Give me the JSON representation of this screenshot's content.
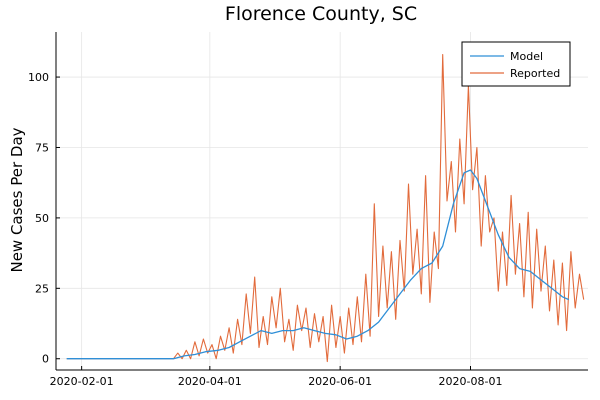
{
  "chart_data": {
    "type": "line",
    "title": "Florence County, SC",
    "xlabel": "",
    "ylabel": "New Cases Per Day",
    "x_axis": {
      "type": "date",
      "min": "2020-01-20",
      "max": "2020-09-25",
      "ticks": [
        "2020-02-01",
        "2020-04-01",
        "2020-06-01",
        "2020-08-01"
      ]
    },
    "y_axis": {
      "min": -4,
      "max": 116,
      "ticks": [
        0,
        25,
        50,
        75,
        100
      ]
    },
    "grid": true,
    "legend": {
      "position": "top-right"
    },
    "colors": {
      "Model": "#2f8fd7",
      "Reported": "#e26b3c"
    },
    "series": [
      {
        "name": "Model",
        "points": [
          [
            "2020-01-25",
            0
          ],
          [
            "2020-03-15",
            0
          ],
          [
            "2020-03-20",
            1
          ],
          [
            "2020-03-25",
            1.5
          ],
          [
            "2020-03-30",
            2.5
          ],
          [
            "2020-04-05",
            3
          ],
          [
            "2020-04-10",
            4
          ],
          [
            "2020-04-15",
            6
          ],
          [
            "2020-04-20",
            8
          ],
          [
            "2020-04-25",
            10
          ],
          [
            "2020-04-30",
            9
          ],
          [
            "2020-05-05",
            10
          ],
          [
            "2020-05-10",
            10
          ],
          [
            "2020-05-15",
            11
          ],
          [
            "2020-05-20",
            10
          ],
          [
            "2020-05-25",
            9
          ],
          [
            "2020-05-30",
            8.5
          ],
          [
            "2020-06-04",
            7
          ],
          [
            "2020-06-09",
            8
          ],
          [
            "2020-06-14",
            10
          ],
          [
            "2020-06-19",
            13
          ],
          [
            "2020-06-24",
            18
          ],
          [
            "2020-06-29",
            23
          ],
          [
            "2020-07-04",
            28
          ],
          [
            "2020-07-09",
            32
          ],
          [
            "2020-07-14",
            34
          ],
          [
            "2020-07-19",
            40
          ],
          [
            "2020-07-24",
            55
          ],
          [
            "2020-07-29",
            66
          ],
          [
            "2020-08-01",
            67
          ],
          [
            "2020-08-04",
            64
          ],
          [
            "2020-08-09",
            54
          ],
          [
            "2020-08-14",
            44
          ],
          [
            "2020-08-19",
            36
          ],
          [
            "2020-08-24",
            32
          ],
          [
            "2020-08-29",
            31
          ],
          [
            "2020-09-03",
            28
          ],
          [
            "2020-09-08",
            25
          ],
          [
            "2020-09-13",
            22
          ],
          [
            "2020-09-16",
            21
          ]
        ]
      },
      {
        "name": "Reported",
        "points": [
          [
            "2020-01-25",
            0
          ],
          [
            "2020-03-15",
            0
          ],
          [
            "2020-03-17",
            2
          ],
          [
            "2020-03-19",
            0
          ],
          [
            "2020-03-21",
            3
          ],
          [
            "2020-03-23",
            0
          ],
          [
            "2020-03-25",
            6
          ],
          [
            "2020-03-27",
            1
          ],
          [
            "2020-03-29",
            7
          ],
          [
            "2020-03-31",
            2
          ],
          [
            "2020-04-02",
            5
          ],
          [
            "2020-04-04",
            0
          ],
          [
            "2020-04-06",
            8
          ],
          [
            "2020-04-08",
            3
          ],
          [
            "2020-04-10",
            11
          ],
          [
            "2020-04-12",
            2
          ],
          [
            "2020-04-14",
            14
          ],
          [
            "2020-04-16",
            5
          ],
          [
            "2020-04-18",
            23
          ],
          [
            "2020-04-20",
            9
          ],
          [
            "2020-04-22",
            29
          ],
          [
            "2020-04-24",
            4
          ],
          [
            "2020-04-26",
            15
          ],
          [
            "2020-04-28",
            5
          ],
          [
            "2020-04-30",
            22
          ],
          [
            "2020-05-02",
            11
          ],
          [
            "2020-05-04",
            25
          ],
          [
            "2020-05-06",
            6
          ],
          [
            "2020-05-08",
            14
          ],
          [
            "2020-05-10",
            3
          ],
          [
            "2020-05-12",
            19
          ],
          [
            "2020-05-14",
            10
          ],
          [
            "2020-05-16",
            18
          ],
          [
            "2020-05-18",
            4
          ],
          [
            "2020-05-20",
            16
          ],
          [
            "2020-05-22",
            6
          ],
          [
            "2020-05-24",
            15
          ],
          [
            "2020-05-26",
            -1
          ],
          [
            "2020-05-28",
            19
          ],
          [
            "2020-05-30",
            4
          ],
          [
            "2020-06-01",
            15
          ],
          [
            "2020-06-03",
            2
          ],
          [
            "2020-06-05",
            18
          ],
          [
            "2020-06-07",
            5
          ],
          [
            "2020-06-09",
            22
          ],
          [
            "2020-06-11",
            6
          ],
          [
            "2020-06-13",
            30
          ],
          [
            "2020-06-15",
            8
          ],
          [
            "2020-06-17",
            55
          ],
          [
            "2020-06-19",
            15
          ],
          [
            "2020-06-21",
            40
          ],
          [
            "2020-06-23",
            18
          ],
          [
            "2020-06-25",
            38
          ],
          [
            "2020-06-27",
            14
          ],
          [
            "2020-06-29",
            42
          ],
          [
            "2020-07-01",
            24
          ],
          [
            "2020-07-03",
            62
          ],
          [
            "2020-07-05",
            30
          ],
          [
            "2020-07-07",
            46
          ],
          [
            "2020-07-09",
            23
          ],
          [
            "2020-07-11",
            65
          ],
          [
            "2020-07-13",
            20
          ],
          [
            "2020-07-15",
            45
          ],
          [
            "2020-07-17",
            32
          ],
          [
            "2020-07-19",
            108
          ],
          [
            "2020-07-21",
            56
          ],
          [
            "2020-07-23",
            70
          ],
          [
            "2020-07-25",
            45
          ],
          [
            "2020-07-27",
            78
          ],
          [
            "2020-07-29",
            55
          ],
          [
            "2020-07-31",
            97
          ],
          [
            "2020-08-02",
            60
          ],
          [
            "2020-08-04",
            75
          ],
          [
            "2020-08-06",
            40
          ],
          [
            "2020-08-08",
            65
          ],
          [
            "2020-08-10",
            45
          ],
          [
            "2020-08-12",
            50
          ],
          [
            "2020-08-14",
            24
          ],
          [
            "2020-08-16",
            45
          ],
          [
            "2020-08-18",
            26
          ],
          [
            "2020-08-20",
            58
          ],
          [
            "2020-08-22",
            30
          ],
          [
            "2020-08-24",
            48
          ],
          [
            "2020-08-26",
            22
          ],
          [
            "2020-08-28",
            52
          ],
          [
            "2020-08-30",
            18
          ],
          [
            "2020-09-01",
            46
          ],
          [
            "2020-09-03",
            24
          ],
          [
            "2020-09-05",
            40
          ],
          [
            "2020-09-07",
            17
          ],
          [
            "2020-09-09",
            35
          ],
          [
            "2020-09-11",
            12
          ],
          [
            "2020-09-13",
            34
          ],
          [
            "2020-09-15",
            10
          ],
          [
            "2020-09-17",
            38
          ],
          [
            "2020-09-19",
            18
          ],
          [
            "2020-09-21",
            30
          ],
          [
            "2020-09-23",
            21
          ]
        ]
      }
    ]
  }
}
